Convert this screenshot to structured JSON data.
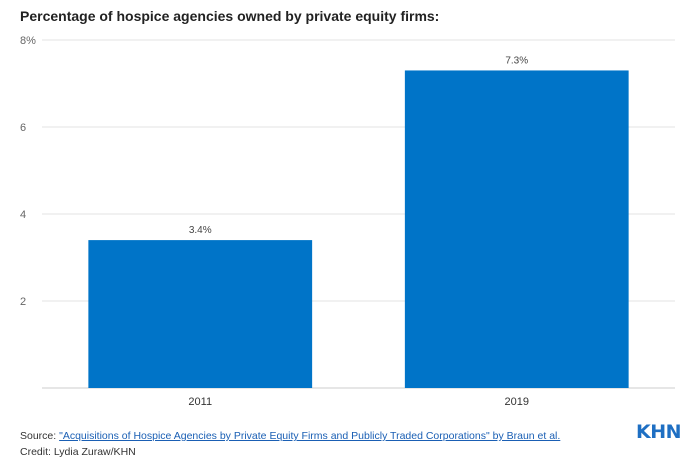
{
  "title": "Percentage of hospice agencies owned by private equity firms:",
  "chart_data": {
    "type": "bar",
    "categories": [
      "2011",
      "2019"
    ],
    "values": [
      3.4,
      7.3
    ],
    "value_labels": [
      "3.4%",
      "7.3%"
    ],
    "ylim": [
      0,
      8
    ],
    "y_ticks": [
      {
        "value": 2,
        "label": "2"
      },
      {
        "value": 4,
        "label": "4"
      },
      {
        "value": 6,
        "label": "6"
      },
      {
        "value": 8,
        "label": "8%"
      }
    ],
    "grid": true,
    "bar_color": "#0074c8"
  },
  "footer": {
    "source_prefix": "Source: ",
    "source_link": "\"Acquisitions of Hospice Agencies by Private Equity Firms and Publicly Traded Corporations\" by Braun et al.",
    "credit": "Credit: Lydia Zuraw/KHN"
  },
  "logo": "KHN"
}
